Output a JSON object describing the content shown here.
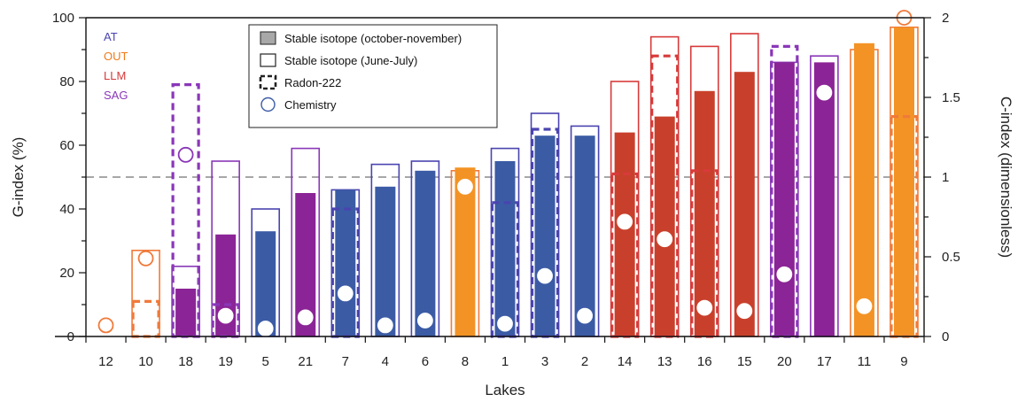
{
  "chart_data": {
    "type": "bar",
    "xlabel": "Lakes",
    "ylabel": "G-index (%)",
    "y2label": "C-index (dimensionless)",
    "ylim": [
      0,
      100
    ],
    "y2lim": [
      0,
      2
    ],
    "yticks": [
      "0",
      "20",
      "40",
      "60",
      "80",
      "100"
    ],
    "y2ticks": [
      "0",
      "0.5",
      "1",
      "1.5",
      "2"
    ],
    "reference_line": {
      "value": 50,
      "style": "dashed",
      "color": "#8a8a8a"
    },
    "colors": {
      "AT": "#3b5ba5",
      "OUT": "#f39325",
      "LLM": "#c8402b",
      "SAG": "#8b2496"
    },
    "stroke_colors": {
      "AT": "#4a44b0",
      "OUT": "#f07a3a",
      "LLM": "#d83a3a",
      "SAG": "#8a37b8"
    },
    "groups": [
      {
        "name": "AT",
        "color": "#4a44b0"
      },
      {
        "name": "OUT",
        "color": "#f07a1a"
      },
      {
        "name": "LLM",
        "color": "#d83a3a"
      },
      {
        "name": "SAG",
        "color": "#8a37b8"
      }
    ],
    "legend": {
      "position": "top-center",
      "entries": [
        {
          "label": "Stable isotope (october-november)",
          "marker": "filled-box"
        },
        {
          "label": "Stable isotope (June-July)",
          "marker": "open-box"
        },
        {
          "label": "Radon-222",
          "marker": "dashed-box"
        },
        {
          "label": "Chemistry",
          "marker": "circle"
        }
      ]
    },
    "categories": [
      "12",
      "10",
      "18",
      "19",
      "5",
      "21",
      "7",
      "4",
      "6",
      "8",
      "1",
      "3",
      "2",
      "14",
      "13",
      "16",
      "15",
      "20",
      "17",
      "11",
      "9"
    ],
    "lake_group": [
      "OUT",
      "OUT",
      "SAG",
      "SAG",
      "AT",
      "SAG",
      "AT",
      "AT",
      "AT",
      "OUT",
      "AT",
      "AT",
      "AT",
      "LLM",
      "LLM",
      "LLM",
      "LLM",
      "SAG",
      "SAG",
      "OUT",
      "OUT"
    ],
    "series": [
      {
        "name": "Stable isotope (october-november)",
        "unit": "G-index (%)",
        "values": [
          null,
          null,
          15,
          32,
          33,
          45,
          46,
          47,
          52,
          53,
          55,
          63,
          63,
          64,
          69,
          77,
          83,
          86,
          86,
          92,
          97
        ]
      },
      {
        "name": "Stable isotope (June-July)",
        "unit": "G-index (%)",
        "values": [
          null,
          27,
          22,
          55,
          40,
          59,
          46,
          54,
          55,
          52,
          59,
          70,
          66,
          80,
          94,
          91,
          95,
          86,
          88,
          90,
          97
        ]
      },
      {
        "name": "Radon-222",
        "unit": "G-index (%)",
        "values": [
          null,
          11,
          79,
          10,
          null,
          null,
          40,
          null,
          null,
          null,
          42,
          65,
          null,
          51,
          88,
          52,
          null,
          91,
          null,
          null,
          69
        ]
      },
      {
        "name": "Chemistry",
        "unit": "C-index (dimensionless)",
        "values": [
          0.07,
          0.49,
          1.14,
          0.13,
          0.05,
          0.12,
          0.27,
          0.07,
          0.1,
          0.94,
          0.08,
          0.38,
          0.13,
          0.72,
          0.61,
          0.18,
          0.16,
          0.39,
          1.53,
          0.19,
          2.0
        ]
      }
    ]
  }
}
